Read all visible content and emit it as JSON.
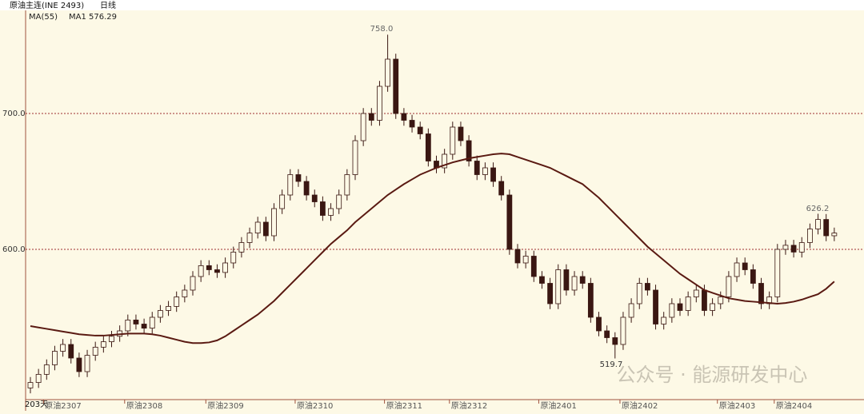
{
  "chart_data": {
    "type": "candlestick",
    "title": "原油主连(INE 2493)",
    "period": "日线",
    "indicator": "MA(55)",
    "bar_count": "203天",
    "watermark": "公众号 · 能源研发中心",
    "ylim": [
      489.4,
      775.3
    ],
    "yticks": [
      {
        "value": 600,
        "label": "600.0"
      },
      {
        "value": 700,
        "label": "700.0"
      }
    ],
    "grid": true,
    "categories": [
      null,
      null,
      "原油2307",
      null,
      null,
      null,
      null,
      null,
      null,
      null,
      null,
      null,
      "原油2308",
      null,
      null,
      null,
      null,
      null,
      null,
      null,
      null,
      null,
      "原油2309",
      null,
      null,
      null,
      null,
      null,
      null,
      null,
      null,
      null,
      null,
      "原油2310",
      null,
      null,
      null,
      null,
      null,
      null,
      null,
      null,
      null,
      null,
      "原油2311",
      null,
      null,
      null,
      null,
      null,
      null,
      null,
      "原油2312",
      null,
      null,
      null,
      null,
      null,
      null,
      null,
      null,
      null,
      null,
      "原油2401",
      null,
      null,
      null,
      null,
      null,
      null,
      null,
      null,
      null,
      "原油2402",
      null,
      null,
      null,
      null,
      null,
      null,
      null,
      null,
      null,
      null,
      null,
      "原油2403",
      null,
      null,
      null,
      null,
      null,
      null,
      "原油2404",
      null,
      null,
      null,
      null,
      null,
      null,
      null
    ],
    "open": [
      498,
      502,
      508,
      515,
      525,
      530,
      520,
      510,
      522,
      528,
      532,
      536,
      540,
      548,
      545,
      542,
      550,
      555,
      558,
      565,
      570,
      580,
      588,
      585,
      583,
      590,
      598,
      605,
      612,
      620,
      610,
      630,
      640,
      655,
      650,
      640,
      635,
      625,
      630,
      640,
      655,
      680,
      700,
      695,
      720,
      740,
      700,
      695,
      690,
      685,
      665,
      660,
      670,
      690,
      680,
      665,
      655,
      660,
      650,
      640,
      600,
      590,
      595,
      580,
      575,
      560,
      585,
      570,
      580,
      575,
      550,
      540,
      535,
      530,
      550,
      560,
      575,
      570,
      545,
      550,
      560,
      555,
      565,
      570,
      555,
      560,
      565,
      580,
      590,
      585,
      575,
      560,
      565,
      600,
      603,
      598,
      605,
      615,
      622,
      610
    ],
    "high": [
      506,
      512,
      519,
      529,
      534,
      534,
      524,
      526,
      532,
      536,
      540,
      544,
      552,
      552,
      549,
      554,
      559,
      562,
      569,
      574,
      584,
      592,
      592,
      589,
      594,
      602,
      609,
      616,
      624,
      624,
      634,
      644,
      659,
      659,
      654,
      644,
      639,
      634,
      644,
      659,
      684,
      704,
      704,
      724,
      758,
      744,
      704,
      699,
      694,
      689,
      669,
      674,
      694,
      694,
      684,
      669,
      664,
      664,
      654,
      644,
      604,
      599,
      599,
      584,
      579,
      589,
      589,
      584,
      584,
      579,
      554,
      544,
      539,
      554,
      564,
      579,
      579,
      574,
      554,
      564,
      564,
      569,
      574,
      574,
      564,
      569,
      584,
      594,
      594,
      589,
      579,
      569,
      604,
      607,
      607,
      609,
      619,
      626.2,
      626,
      616
    ],
    "low": [
      494,
      498,
      504,
      511,
      521,
      516,
      506,
      506,
      518,
      524,
      528,
      532,
      536,
      541,
      538,
      538,
      546,
      551,
      554,
      561,
      566,
      576,
      581,
      579,
      579,
      586,
      594,
      601,
      608,
      606,
      606,
      626,
      636,
      646,
      636,
      631,
      621,
      621,
      626,
      636,
      651,
      676,
      691,
      691,
      716,
      696,
      691,
      686,
      681,
      661,
      656,
      656,
      666,
      676,
      661,
      651,
      651,
      646,
      636,
      596,
      586,
      586,
      576,
      571,
      556,
      556,
      566,
      566,
      571,
      546,
      536,
      531,
      519.7,
      526,
      546,
      556,
      566,
      541,
      541,
      546,
      551,
      551,
      561,
      551,
      551,
      556,
      561,
      576,
      581,
      571,
      556,
      556,
      561,
      596,
      594,
      594,
      601,
      611,
      606,
      606
    ],
    "close": [
      502,
      508,
      515,
      525,
      530,
      520,
      510,
      522,
      528,
      532,
      536,
      540,
      548,
      545,
      542,
      550,
      555,
      558,
      565,
      570,
      580,
      588,
      585,
      583,
      590,
      598,
      605,
      612,
      620,
      610,
      630,
      640,
      655,
      650,
      640,
      635,
      625,
      630,
      640,
      655,
      680,
      700,
      695,
      720,
      740,
      700,
      695,
      690,
      685,
      665,
      660,
      670,
      690,
      680,
      665,
      655,
      660,
      650,
      640,
      600,
      590,
      595,
      580,
      575,
      560,
      585,
      570,
      580,
      575,
      550,
      540,
      535,
      530,
      550,
      560,
      575,
      570,
      545,
      550,
      560,
      555,
      565,
      570,
      555,
      560,
      565,
      580,
      590,
      585,
      575,
      560,
      565,
      600,
      603,
      598,
      605,
      615,
      622,
      610,
      612
    ],
    "ma": {
      "name": "MA1",
      "color": "#5a1a12",
      "values": [
        543.5,
        542.5,
        541.5,
        540.5,
        539.5,
        538.5,
        537.5,
        537,
        536.5,
        536.5,
        537,
        537.5,
        538,
        538,
        538,
        537.5,
        536.5,
        535,
        533.5,
        532,
        531,
        531,
        531.5,
        533,
        536,
        540,
        544,
        548,
        552,
        557,
        562,
        568,
        574,
        580,
        586,
        592,
        598,
        604,
        609,
        614,
        620,
        625,
        630,
        635,
        640,
        644,
        648,
        651.5,
        655,
        657.5,
        660,
        662,
        664,
        665.5,
        667,
        668,
        669,
        670,
        670.5,
        670,
        668,
        666,
        664,
        662,
        660,
        657,
        654,
        651,
        648,
        643,
        638,
        632,
        626,
        620,
        614,
        608,
        602,
        597,
        592,
        587,
        582,
        578,
        574,
        570,
        568,
        566,
        564,
        563,
        562,
        561.5,
        561,
        560.5,
        560,
        560.5,
        561.5,
        563,
        565,
        567,
        571,
        576.29
      ]
    },
    "annotations": [
      "758.0",
      "519.7",
      "626.2"
    ]
  }
}
